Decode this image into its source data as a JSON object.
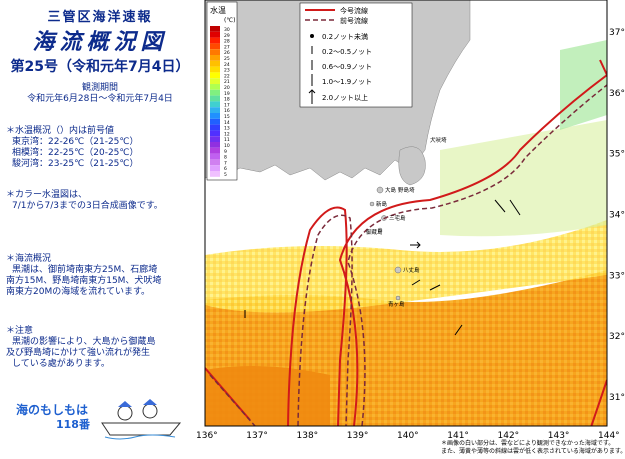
{
  "header": {
    "agency": "三管区海洋速報",
    "title": "海流概況図",
    "issue": "第25号（令和元年7月4日）",
    "period_label": "観測期間",
    "period": "令和元年6月28日～令和元年7月4日"
  },
  "water_temp": {
    "heading": "＊水温概況（）内は前号値",
    "lines": [
      "東京湾：22-26℃（21-25℃）",
      "相模湾：22-25℃（20-25℃）",
      "駿河湾：23-25℃（21-25℃）"
    ]
  },
  "color_note": {
    "lines": [
      "＊カラー水温図は、",
      "7/1から7/3までの3日合成画像です。"
    ]
  },
  "current_summary": {
    "heading": "＊海流概況",
    "lines": [
      "黒潮は、御前埼南東方25M、石廊埼",
      "南方15M、野島埼南東方15M、犬吠埼",
      "南東方20Mの海域を流れています。"
    ]
  },
  "caution": {
    "heading": "＊注意",
    "lines": [
      "黒潮の影響により、大島から御蔵島",
      "及び野島埼にかけて強い流れが発生",
      "している處があります。"
    ]
  },
  "mascot": {
    "line1": "海のもしもは",
    "line2": "118番"
  },
  "map": {
    "scale_title": "水温",
    "scale_unit": "(℃)",
    "scale_values": [
      "30",
      "29",
      "28",
      "27",
      "26",
      "25",
      "24",
      "23",
      "22",
      "21",
      "20",
      "19",
      "18",
      "17",
      "16",
      "15",
      "14",
      "13",
      "12",
      "11",
      "10",
      "9",
      "8",
      "7",
      "6",
      "5"
    ],
    "scale_colors": [
      "#c00000",
      "#e00000",
      "#ff2000",
      "#ff4a00",
      "#ff7800",
      "#ffa000",
      "#ffc000",
      "#ffdc00",
      "#ffff00",
      "#e0ff30",
      "#b0ff50",
      "#80f080",
      "#60e0a0",
      "#40d0d0",
      "#30b0f0",
      "#2090ff",
      "#2060ff",
      "#3040ff",
      "#5030ff",
      "#7030f0",
      "#9030e0",
      "#b040e0",
      "#c060f0",
      "#d080f0",
      "#e0a0ff",
      "#f0c0ff"
    ],
    "legend": {
      "current": "今号流線",
      "previous": "前号流線",
      "arrows": [
        "0.2ノット未満",
        "0.2～0.5ノット",
        "0.6～0.9ノット",
        "1.0～1.9ノット",
        "2.0ノット以上"
      ]
    },
    "lon_ticks": [
      "136°",
      "137°",
      "138°",
      "139°",
      "140°",
      "141°",
      "142°",
      "143°",
      "144°"
    ],
    "lat_ticks": [
      "37°",
      "36°",
      "35°",
      "34°",
      "33°",
      "32°",
      "31°"
    ],
    "place_labels": {
      "oshima": "大島",
      "niijima": "新島",
      "miyake": "三宅島",
      "mikura": "御蔵島",
      "hachijo": "八丈島",
      "aogashima": "青ヶ島",
      "inubo": "犬吠埼",
      "nojima": "野島埼"
    },
    "footnotes": [
      "＊画像の白い部分は、雲などにより観測できなかった海域です。",
      "また、薄黄や薄等の斜線は雲が低く表示されている海域があります。"
    ],
    "colors": {
      "current_line": "#d11a1a",
      "previous_line": "#7a2a3a",
      "land": "#c8c8c8"
    }
  }
}
